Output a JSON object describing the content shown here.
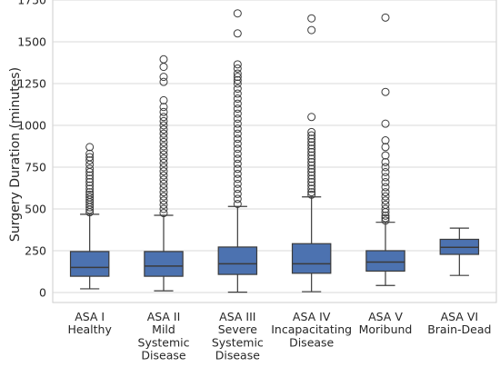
{
  "chart_data": {
    "type": "box",
    "ylabel": "Surgery Duration (minutes)",
    "xlabel": "",
    "ylim": [
      -60,
      1750
    ],
    "yticks": [
      0,
      250,
      500,
      750,
      1000,
      1250,
      1500,
      1750
    ],
    "grid": "horizontal",
    "box_color": "#4c72b0",
    "edge_color": "#3b3b3b",
    "categories": [
      {
        "label_lines": [
          "ASA I",
          "Healthy"
        ],
        "whisker_low": 22,
        "q1": 97,
        "median": 150,
        "q3": 245,
        "whisker_high": 468,
        "outliers": [
          480,
          495,
          510,
          525,
          540,
          555,
          570,
          585,
          600,
          620,
          640,
          660,
          680,
          700,
          720,
          740,
          765,
          790,
          810,
          830,
          870
        ]
      },
      {
        "label_lines": [
          "ASA II",
          "Mild",
          "Systemic",
          "Disease"
        ],
        "whisker_low": 10,
        "q1": 97,
        "median": 158,
        "q3": 245,
        "whisker_high": 462,
        "outliers": [
          475,
          500,
          525,
          550,
          575,
          600,
          625,
          650,
          675,
          700,
          725,
          750,
          775,
          800,
          825,
          850,
          875,
          900,
          925,
          950,
          975,
          1000,
          1025,
          1050,
          1080,
          1110,
          1150,
          1260,
          1290,
          1350,
          1395
        ]
      },
      {
        "label_lines": [
          "ASA III",
          "Severe",
          "Systemic",
          "Disease"
        ],
        "whisker_low": 2,
        "q1": 108,
        "median": 172,
        "q3": 272,
        "whisker_high": 515,
        "outliers": [
          530,
          560,
          590,
          620,
          650,
          680,
          710,
          740,
          770,
          800,
          830,
          860,
          890,
          920,
          950,
          980,
          1010,
          1040,
          1070,
          1100,
          1130,
          1160,
          1190,
          1220,
          1250,
          1270,
          1290,
          1310,
          1340,
          1365,
          1550,
          1670
        ]
      },
      {
        "label_lines": [
          "ASA IV",
          "Incapacitating",
          "Disease"
        ],
        "whisker_low": 5,
        "q1": 115,
        "median": 172,
        "q3": 292,
        "whisker_high": 572,
        "outliers": [
          585,
          600,
          620,
          640,
          660,
          680,
          700,
          720,
          740,
          760,
          780,
          800,
          820,
          840,
          860,
          880,
          900,
          920,
          940,
          960,
          1050,
          1570,
          1640
        ]
      },
      {
        "label_lines": [
          "ASA V",
          "Moribund"
        ],
        "whisker_low": 42,
        "q1": 128,
        "median": 182,
        "q3": 250,
        "whisker_high": 420,
        "outliers": [
          430,
          445,
          460,
          480,
          500,
          525,
          550,
          575,
          600,
          630,
          660,
          690,
          720,
          750,
          780,
          820,
          870,
          910,
          1010,
          1200,
          1645
        ]
      },
      {
        "label_lines": [
          "ASA VI",
          "Brain-Dead"
        ],
        "whisker_low": 102,
        "q1": 228,
        "median": 270,
        "q3": 318,
        "whisker_high": 385,
        "outliers": []
      }
    ]
  }
}
